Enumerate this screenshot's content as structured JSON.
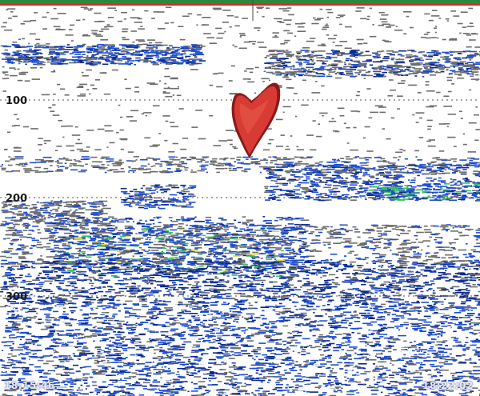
{
  "depth_labels": [
    "100",
    "200",
    "300"
  ],
  "time_start": "18:15:46",
  "time_end": "18:22:02",
  "colors": {
    "background": "#ffffff",
    "weak_echo": "#6e6e6e",
    "medium_echo": "#1e4fd0",
    "dark_echo": "#0a2a90",
    "strong_echo": "#38c060",
    "very_strong_echo": "#d8dc40",
    "target_echo": "#d83a34",
    "top_bar": "#2a8a3a"
  }
}
